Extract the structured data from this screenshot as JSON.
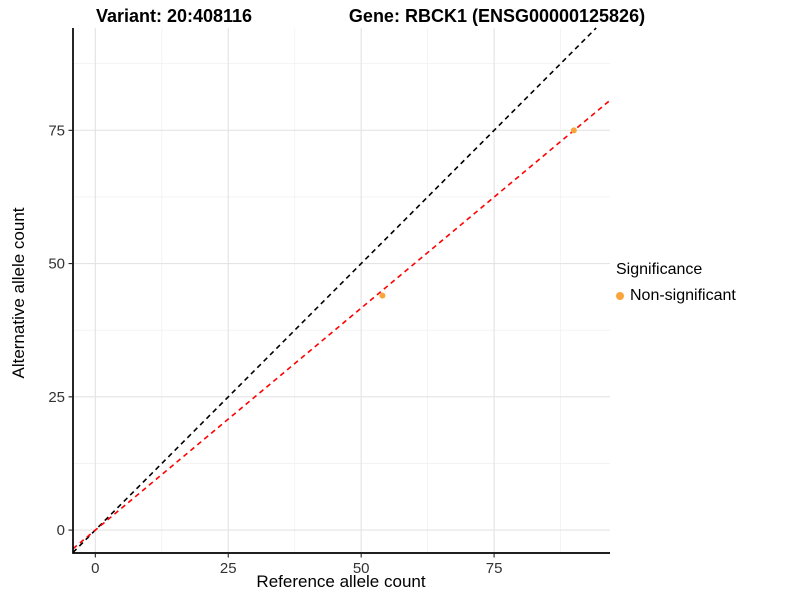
{
  "header": {
    "variant_title": "Variant: 20:408116",
    "gene_title": "Gene: RBCK1 (ENSG00000125826)"
  },
  "chart_data": {
    "type": "scatter",
    "title": "Variant: 20:408116 / Gene: RBCK1 (ENSG00000125826)",
    "xlabel": "Reference allele count",
    "ylabel": "Alternative allele count",
    "xlim": [
      -4.2,
      96.8
    ],
    "ylim": [
      -4.3,
      94.2
    ],
    "xticks": [
      0,
      25,
      50,
      75
    ],
    "yticks": [
      0,
      25,
      50,
      75
    ],
    "minor_xticks": [
      12.5,
      37.5,
      62.5,
      87.5
    ],
    "minor_yticks": [
      12.5,
      37.5,
      62.5,
      87.5
    ],
    "grid": "major+minor",
    "legend": {
      "title": "Significance",
      "position": "right",
      "entries": [
        {
          "label": "Non-significant",
          "color": "#FAA53C",
          "marker": "circle"
        }
      ]
    },
    "series": [
      {
        "name": "Non-significant",
        "color": "#FAA53C",
        "points": [
          {
            "x": 54,
            "y": 44
          },
          {
            "x": 90,
            "y": 75
          }
        ]
      }
    ],
    "lines": [
      {
        "name": "identity",
        "slope": 1,
        "intercept": 0,
        "color": "#000000",
        "linetype": "dashed"
      },
      {
        "name": "fit",
        "slope": 0.833,
        "intercept": 0,
        "color": "#FF0000",
        "linetype": "dashed"
      }
    ],
    "colors": {
      "grid_major": "#E4E4E4",
      "grid_minor": "#F1F1F1",
      "axis_line": "#000000",
      "tick_text": "#333333"
    }
  }
}
